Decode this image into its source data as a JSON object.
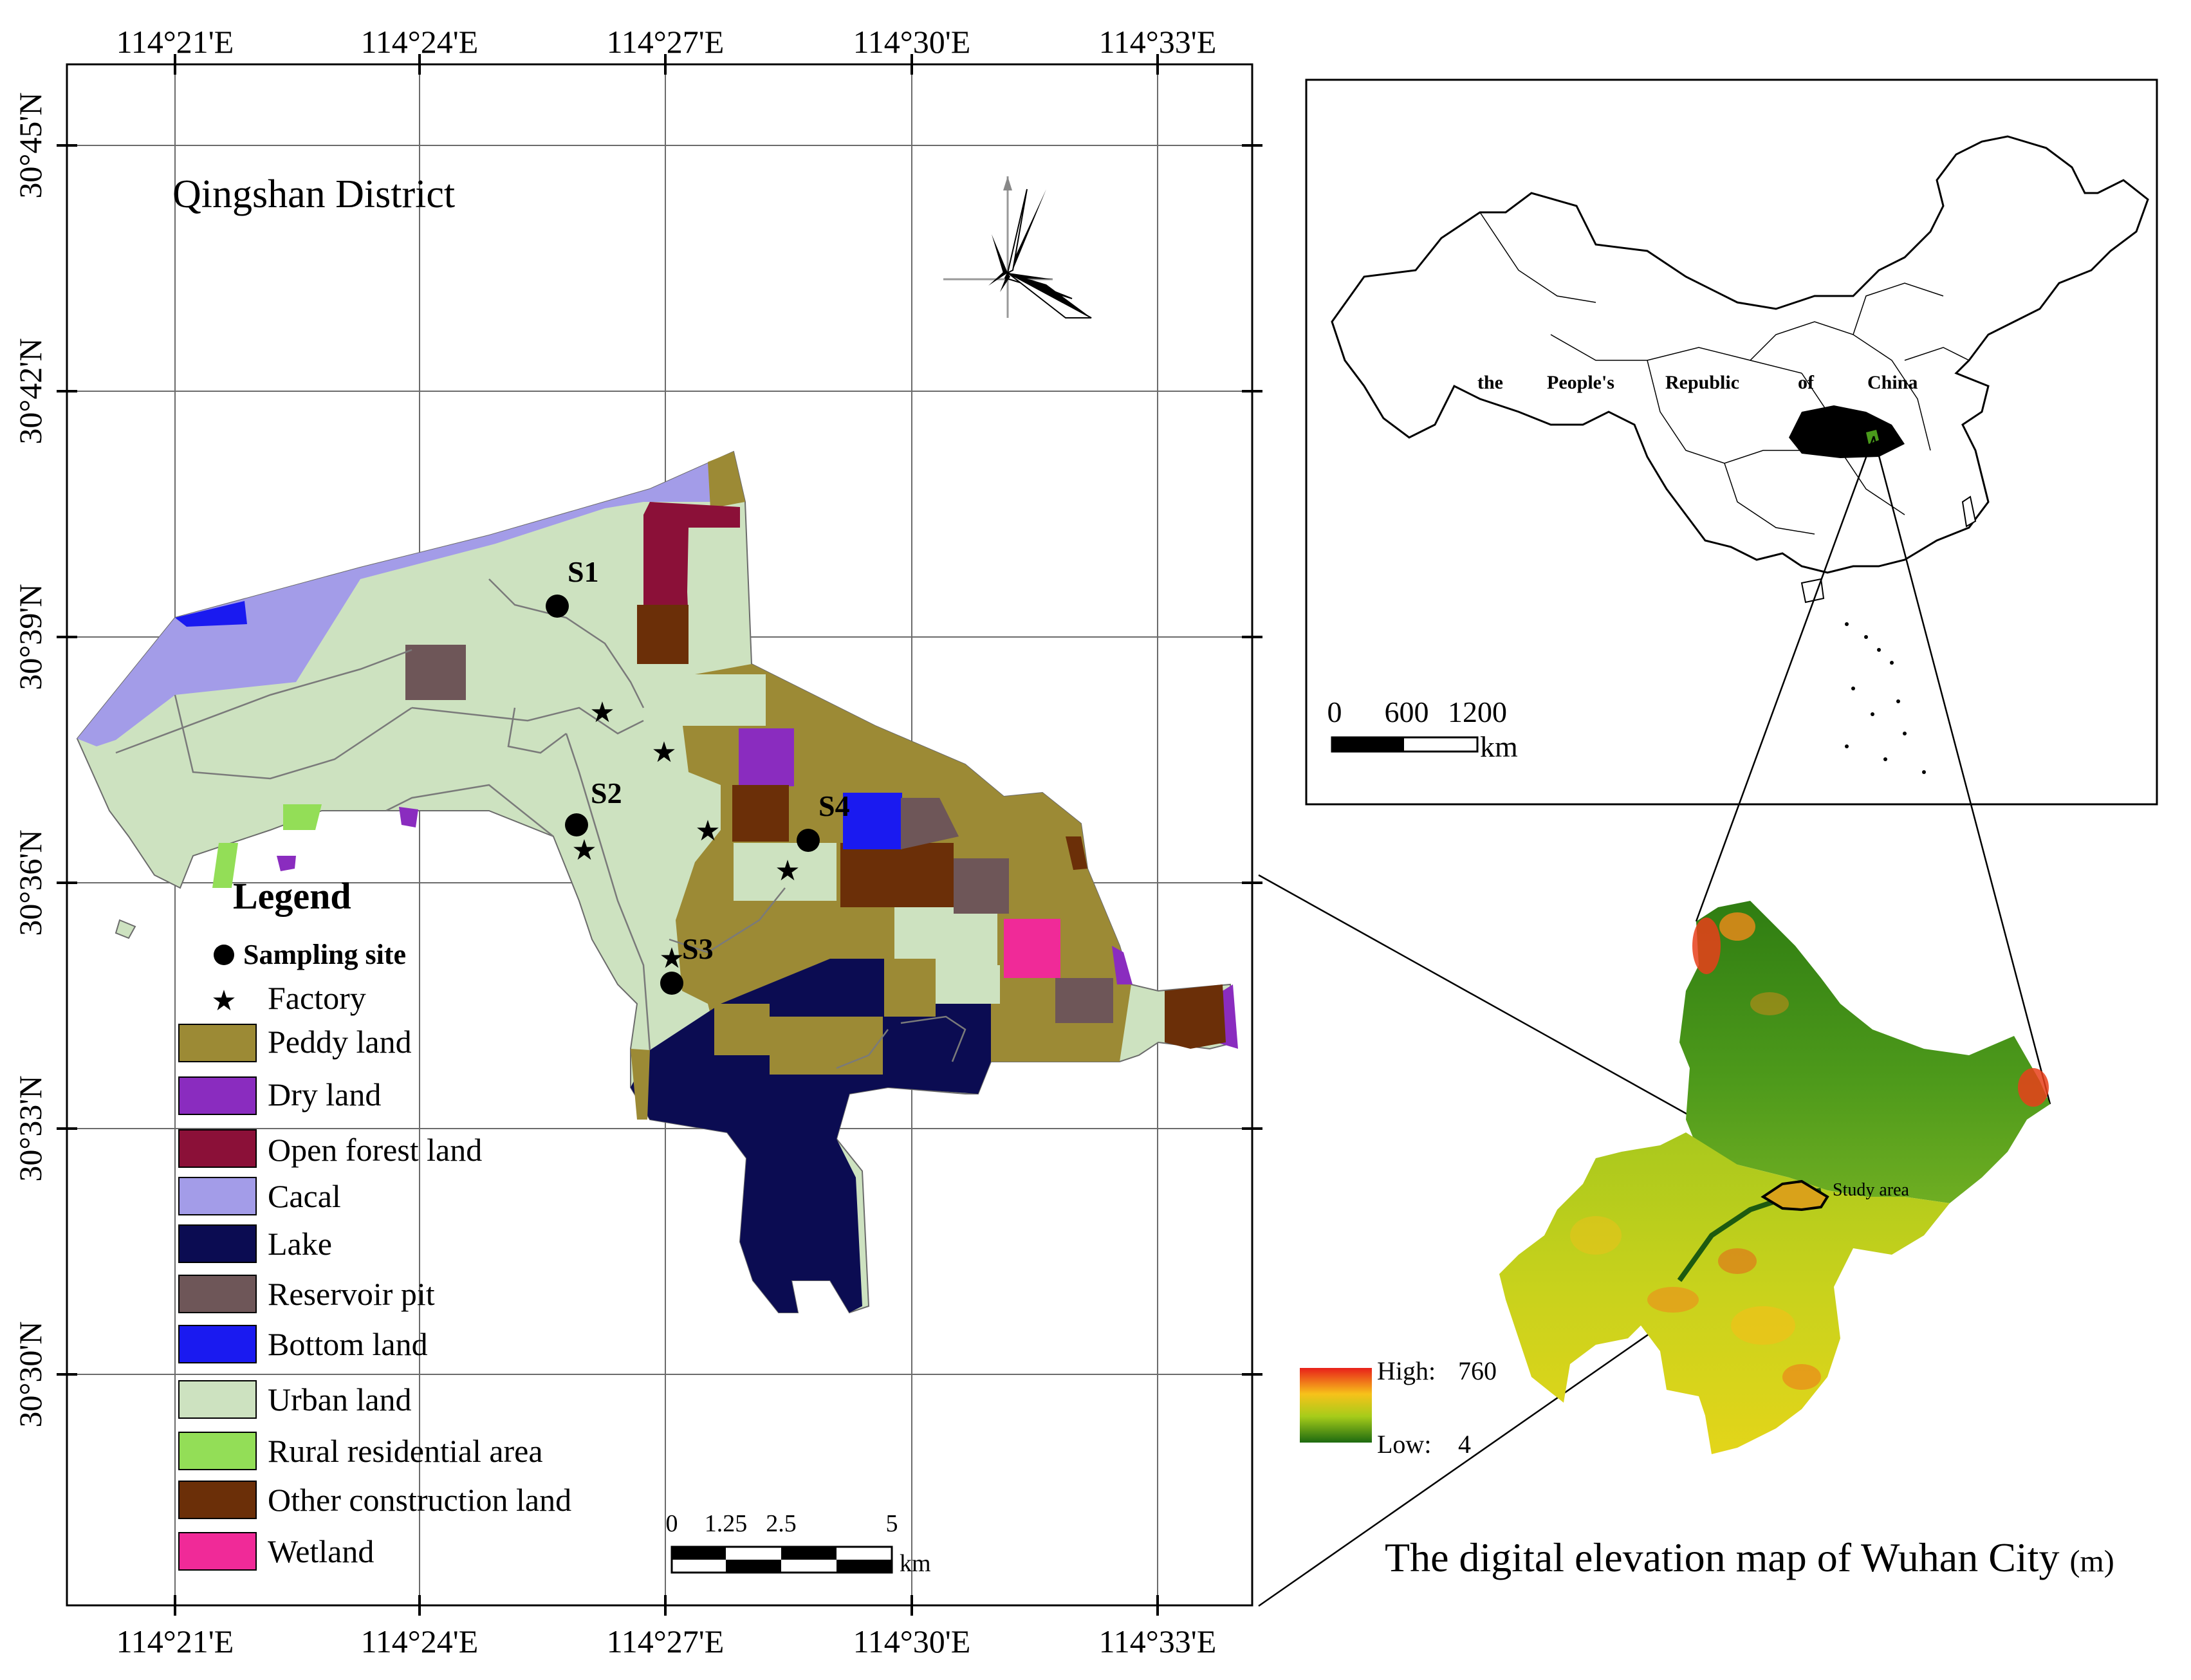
{
  "main_map": {
    "title": "Qingshan District",
    "top_lon_labels": [
      "114°21'E",
      "114°24'E",
      "114°27'E",
      "114°30'E",
      "114°33'E"
    ],
    "bottom_lon_labels": [
      "114°21'E",
      "114°24'E",
      "114°27'E",
      "114°30'E",
      "114°33'E"
    ],
    "lat_labels": [
      "30°45'N",
      "30°42'N",
      "30°39'N",
      "30°36'N",
      "30°33'N",
      "30°30'N"
    ],
    "sites": [
      {
        "label": "S1"
      },
      {
        "label": "S2"
      },
      {
        "label": "S3"
      },
      {
        "label": "S4"
      }
    ],
    "scale_bar": {
      "ticks": [
        "0",
        "1.25",
        "2.5",
        "5"
      ],
      "unit": "km"
    }
  },
  "legend": {
    "title": "Legend",
    "sampling_label": "Sampling site",
    "factory_label": "Factory",
    "classes": [
      {
        "label": "Peddy land",
        "color": "#9c8a35"
      },
      {
        "label": "Dry land",
        "color": "#8a2cbf"
      },
      {
        "label": "Open forest land",
        "color": "#8b1038"
      },
      {
        "label": "Cacal",
        "color": "#a39ce8"
      },
      {
        "label": "Lake",
        "color": "#0b0c52"
      },
      {
        "label": "Reservoir pit",
        "color": "#6e5658"
      },
      {
        "label": "Bottom land",
        "color": "#1a1af0"
      },
      {
        "label": "Urban land",
        "color": "#cde2c0"
      },
      {
        "label": "Rural residential area",
        "color": "#93de57"
      },
      {
        "label": "Other construction land",
        "color": "#6b2f08"
      },
      {
        "label": "Wetland",
        "color": "#f02a98"
      }
    ]
  },
  "inset_china": {
    "label_words": [
      "the",
      "People's",
      "Republic",
      "of",
      "China"
    ],
    "scale_ticks": [
      "0",
      "600",
      "1200"
    ],
    "scale_unit": "km"
  },
  "dem_map": {
    "caption": "The digital elevation map of Wuhan City",
    "caption_unit": "(m)",
    "study_area_label": "Study area",
    "high_label": "High:",
    "high_value": "760",
    "low_label": "Low:",
    "low_value": "4"
  }
}
